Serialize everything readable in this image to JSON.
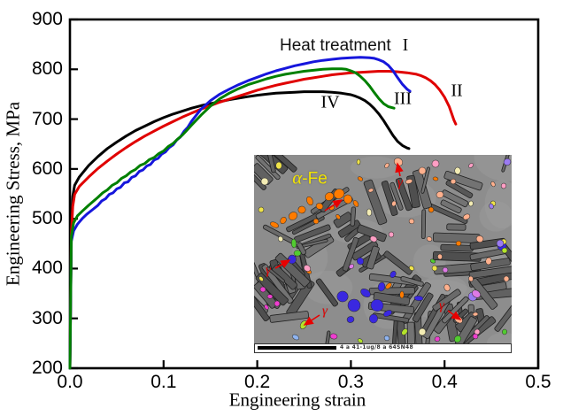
{
  "annotation": {
    "prefix": "Heat treatment"
  },
  "chart_data": {
    "type": "line",
    "title": "",
    "xlabel": "Engineering strain",
    "ylabel": "Engineering Stress, MPa",
    "xlim": [
      0.0,
      0.5
    ],
    "ylim": [
      200,
      900
    ],
    "xticks": [
      0.0,
      0.1,
      0.2,
      0.3,
      0.4,
      0.5
    ],
    "xtick_labels": [
      "0.0",
      "0.1",
      "0.2",
      "0.3",
      "0.4",
      "0.5"
    ],
    "yticks": [
      200,
      300,
      400,
      500,
      600,
      700,
      800,
      900
    ],
    "grid": false,
    "legend_position": "none",
    "annotation_text": "Heat treatment I",
    "series": [
      {
        "name": "IV",
        "label": "IV",
        "color": "#000000",
        "points": [
          [
            0.0,
            200
          ],
          [
            0.0015,
            490
          ],
          [
            0.003,
            545
          ],
          [
            0.005,
            567
          ],
          [
            0.01,
            584
          ],
          [
            0.02,
            607
          ],
          [
            0.03,
            625
          ],
          [
            0.04,
            641
          ],
          [
            0.05,
            654
          ],
          [
            0.06,
            666
          ],
          [
            0.07,
            677
          ],
          [
            0.08,
            686
          ],
          [
            0.09,
            695
          ],
          [
            0.1,
            703
          ],
          [
            0.11,
            710
          ],
          [
            0.12,
            716
          ],
          [
            0.13,
            722
          ],
          [
            0.14,
            727
          ],
          [
            0.15,
            731
          ],
          [
            0.16,
            735
          ],
          [
            0.17,
            739
          ],
          [
            0.18,
            742
          ],
          [
            0.19,
            745
          ],
          [
            0.2,
            748
          ],
          [
            0.21,
            750
          ],
          [
            0.22,
            752
          ],
          [
            0.23,
            753
          ],
          [
            0.24,
            754
          ],
          [
            0.25,
            755
          ],
          [
            0.26,
            755
          ],
          [
            0.27,
            755
          ],
          [
            0.28,
            754
          ],
          [
            0.29,
            752
          ],
          [
            0.3,
            749
          ],
          [
            0.305,
            746
          ],
          [
            0.31,
            742
          ],
          [
            0.315,
            737
          ],
          [
            0.32,
            730
          ],
          [
            0.325,
            721
          ],
          [
            0.33,
            710
          ],
          [
            0.335,
            697
          ],
          [
            0.34,
            682
          ],
          [
            0.345,
            667
          ],
          [
            0.35,
            655
          ],
          [
            0.355,
            647
          ],
          [
            0.36,
            642
          ],
          [
            0.362,
            641
          ]
        ]
      },
      {
        "name": "II",
        "label": "II",
        "color": "#e00000",
        "points": [
          [
            0.0,
            200
          ],
          [
            0.0015,
            470
          ],
          [
            0.003,
            525
          ],
          [
            0.005,
            549
          ],
          [
            0.01,
            565
          ],
          [
            0.02,
            584
          ],
          [
            0.03,
            601
          ],
          [
            0.04,
            616
          ],
          [
            0.05,
            630
          ],
          [
            0.06,
            643
          ],
          [
            0.07,
            655
          ],
          [
            0.08,
            666
          ],
          [
            0.09,
            676
          ],
          [
            0.1,
            686
          ],
          [
            0.11,
            695
          ],
          [
            0.12,
            704
          ],
          [
            0.13,
            712
          ],
          [
            0.14,
            720
          ],
          [
            0.15,
            727
          ],
          [
            0.16,
            734
          ],
          [
            0.17,
            740
          ],
          [
            0.18,
            746
          ],
          [
            0.19,
            752
          ],
          [
            0.2,
            758
          ],
          [
            0.21,
            763
          ],
          [
            0.22,
            768
          ],
          [
            0.23,
            772
          ],
          [
            0.24,
            776
          ],
          [
            0.25,
            780
          ],
          [
            0.26,
            783
          ],
          [
            0.27,
            786
          ],
          [
            0.28,
            789
          ],
          [
            0.29,
            791
          ],
          [
            0.3,
            793
          ],
          [
            0.31,
            794
          ],
          [
            0.32,
            795
          ],
          [
            0.33,
            796
          ],
          [
            0.34,
            796
          ],
          [
            0.35,
            795
          ],
          [
            0.36,
            793
          ],
          [
            0.37,
            790
          ],
          [
            0.375,
            787
          ],
          [
            0.38,
            783
          ],
          [
            0.385,
            777
          ],
          [
            0.39,
            769
          ],
          [
            0.395,
            758
          ],
          [
            0.4,
            744
          ],
          [
            0.405,
            725
          ],
          [
            0.41,
            698
          ],
          [
            0.412,
            690
          ]
        ]
      },
      {
        "name": "I",
        "label": "I",
        "color": "#1616dc",
        "points": [
          [
            0.0,
            200
          ],
          [
            0.0015,
            455
          ],
          [
            0.004,
            476
          ],
          [
            0.008,
            489
          ],
          [
            0.013,
            500
          ],
          [
            0.018,
            509
          ],
          [
            0.024,
            518
          ],
          [
            0.03,
            527
          ],
          [
            0.034,
            536
          ],
          [
            0.038,
            540
          ],
          [
            0.042,
            549
          ],
          [
            0.046,
            552
          ],
          [
            0.05,
            560
          ],
          [
            0.054,
            563
          ],
          [
            0.058,
            572
          ],
          [
            0.062,
            574
          ],
          [
            0.066,
            583
          ],
          [
            0.07,
            586
          ],
          [
            0.074,
            595
          ],
          [
            0.078,
            598
          ],
          [
            0.082,
            606
          ],
          [
            0.086,
            609
          ],
          [
            0.09,
            618
          ],
          [
            0.094,
            621
          ],
          [
            0.098,
            630
          ],
          [
            0.102,
            634
          ],
          [
            0.106,
            643
          ],
          [
            0.11,
            648
          ],
          [
            0.114,
            658
          ],
          [
            0.118,
            664
          ],
          [
            0.122,
            676
          ],
          [
            0.126,
            684
          ],
          [
            0.13,
            696
          ],
          [
            0.135,
            708
          ],
          [
            0.14,
            720
          ],
          [
            0.15,
            737
          ],
          [
            0.16,
            750
          ],
          [
            0.17,
            760
          ],
          [
            0.18,
            769
          ],
          [
            0.19,
            777
          ],
          [
            0.2,
            784
          ],
          [
            0.21,
            791
          ],
          [
            0.22,
            797
          ],
          [
            0.23,
            802
          ],
          [
            0.24,
            807
          ],
          [
            0.25,
            811
          ],
          [
            0.26,
            815
          ],
          [
            0.27,
            818
          ],
          [
            0.28,
            820
          ],
          [
            0.29,
            822
          ],
          [
            0.3,
            823
          ],
          [
            0.31,
            824
          ],
          [
            0.32,
            823
          ],
          [
            0.325,
            822
          ],
          [
            0.33,
            819
          ],
          [
            0.335,
            815
          ],
          [
            0.34,
            808
          ],
          [
            0.345,
            797
          ],
          [
            0.35,
            783
          ],
          [
            0.355,
            770
          ],
          [
            0.36,
            760
          ],
          [
            0.363,
            756
          ]
        ]
      },
      {
        "name": "III",
        "label": "III",
        "color": "#008000",
        "points": [
          [
            0.0,
            200
          ],
          [
            0.0015,
            465
          ],
          [
            0.004,
            492
          ],
          [
            0.008,
            506
          ],
          [
            0.013,
            515
          ],
          [
            0.02,
            527
          ],
          [
            0.03,
            543
          ],
          [
            0.035,
            552
          ],
          [
            0.04,
            558
          ],
          [
            0.045,
            567
          ],
          [
            0.05,
            572
          ],
          [
            0.055,
            581
          ],
          [
            0.06,
            586
          ],
          [
            0.065,
            594
          ],
          [
            0.07,
            599
          ],
          [
            0.075,
            607
          ],
          [
            0.08,
            611
          ],
          [
            0.085,
            619
          ],
          [
            0.09,
            623
          ],
          [
            0.095,
            631
          ],
          [
            0.1,
            636
          ],
          [
            0.105,
            645
          ],
          [
            0.11,
            651
          ],
          [
            0.115,
            660
          ],
          [
            0.12,
            668
          ],
          [
            0.125,
            678
          ],
          [
            0.13,
            688
          ],
          [
            0.135,
            698
          ],
          [
            0.14,
            708
          ],
          [
            0.15,
            726
          ],
          [
            0.16,
            741
          ],
          [
            0.17,
            752
          ],
          [
            0.18,
            761
          ],
          [
            0.19,
            769
          ],
          [
            0.2,
            775
          ],
          [
            0.21,
            781
          ],
          [
            0.22,
            786
          ],
          [
            0.23,
            790
          ],
          [
            0.24,
            793
          ],
          [
            0.25,
            796
          ],
          [
            0.26,
            798
          ],
          [
            0.27,
            800
          ],
          [
            0.28,
            801
          ],
          [
            0.29,
            801
          ],
          [
            0.295,
            800
          ],
          [
            0.3,
            797
          ],
          [
            0.305,
            793
          ],
          [
            0.31,
            786
          ],
          [
            0.315,
            777
          ],
          [
            0.32,
            766
          ],
          [
            0.325,
            753
          ],
          [
            0.33,
            741
          ],
          [
            0.335,
            731
          ],
          [
            0.34,
            725
          ],
          [
            0.346,
            722
          ]
        ]
      }
    ]
  },
  "inset": {
    "alpha_italic": "α",
    "alpha_rest": "-Fe",
    "alpha_color": "#f2e400",
    "gamma_label": "γ",
    "gamma_color": "#e80000",
    "infobar_text": "4 a 41-1ug/8 a 64SN48",
    "matrix_color": "#8d8d8d",
    "lath_colors": [
      "#4f4f4f",
      "#585858",
      "#616161",
      "#6a6a6a",
      "#737373"
    ],
    "phase_colors": {
      "orange": "#ff7b00",
      "blue": "#3a28e0",
      "salmon": "#ffb08d",
      "pink": "#ff9ec4",
      "yellow": "#efe34a",
      "cream": "#f3ecb4",
      "green": "#52cc30",
      "yellowgreen": "#b4e42a",
      "magenta": "#ee3ecf",
      "violet": "#9b7bf2",
      "orchid": "#df7ae6",
      "lightblue": "#8fb4f0"
    }
  }
}
